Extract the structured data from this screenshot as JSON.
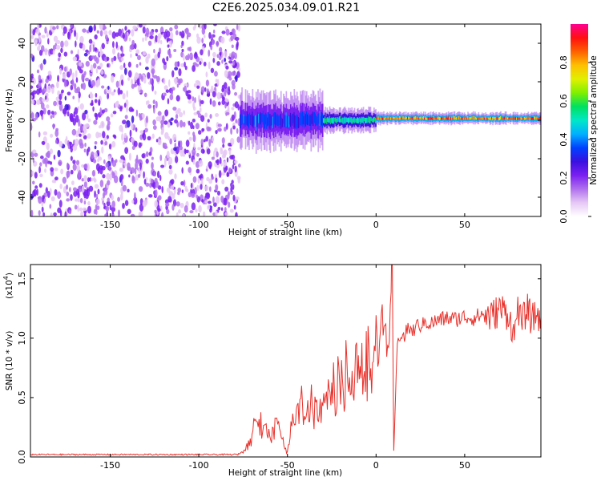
{
  "title": "C2E6.2025.034.09.01.R21",
  "chart_data": [
    {
      "type": "heatmap",
      "xlabel": "Height of straight line (km)",
      "ylabel": "Frequency (Hz)",
      "xlim": [
        -195,
        93
      ],
      "ylim": [
        -50,
        50
      ],
      "xticks": [
        -150,
        -100,
        -50,
        0,
        50
      ],
      "yticks": [
        -40,
        -20,
        0,
        20,
        40
      ],
      "colorbar": {
        "label": "Normalized spectral amplitude",
        "range": [
          0,
          1
        ],
        "ticks": [
          0.0,
          0.2,
          0.4,
          0.6,
          0.8
        ],
        "colors": [
          "#ffffff",
          "#e6c8f5",
          "#b070ee",
          "#7a20f0",
          "#3a10e0",
          "#0040ff",
          "#00b0ff",
          "#00e8c8",
          "#00e060",
          "#80f000",
          "#e0f000",
          "#ffc000",
          "#ff6000",
          "#ff1010",
          "#ff0090"
        ]
      },
      "regions": [
        {
          "label": "noise",
          "x": [
            -195,
            -77
          ],
          "freq_range": [
            -50,
            50
          ],
          "amplitude_approx": 0.15
        },
        {
          "label": "broadened carrier",
          "x": [
            -77,
            -30
          ],
          "freq_center": 0,
          "half_width_hz": 7,
          "amplitude_approx": 0.4
        },
        {
          "label": "narrowing carrier",
          "x": [
            -30,
            0
          ],
          "freq_center": 0,
          "half_width_hz": 3,
          "amplitude_approx": 0.6
        },
        {
          "label": "clean carrier",
          "x": [
            0,
            93
          ],
          "freq_center": 1,
          "half_width_hz": 1.5,
          "amplitude_approx": 0.95
        }
      ]
    },
    {
      "type": "line",
      "xlabel": "Height of straight line (km)",
      "ylabel": "SNR (10 * v/v)",
      "yscale_label": "(x10",
      "yscale_exponent": "4",
      "xlim": [
        -195,
        93
      ],
      "ylim": [
        0,
        1.62
      ],
      "xticks": [
        -150,
        -100,
        -50,
        0,
        50
      ],
      "yticks": [
        0.0,
        0.5,
        1.0,
        1.5
      ],
      "ytick_labels": [
        "0.0",
        "0.5",
        "1.0",
        "1.5"
      ],
      "color": "#e8302a",
      "series": [
        {
          "x": [
            -195,
            -180,
            -160,
            -140,
            -120,
            -100,
            -85,
            -78,
            -75,
            -72,
            -70,
            -68,
            -66,
            -64,
            -62,
            -60,
            -58,
            -56,
            -54,
            -52,
            -50,
            -48,
            -46,
            -44,
            -42,
            -40,
            -38,
            -36,
            -34,
            -32,
            -30,
            -28,
            -26,
            -24,
            -22,
            -20,
            -18,
            -16,
            -14,
            -12,
            -10,
            -8,
            -6,
            -4,
            -2,
            0,
            2,
            4,
            6,
            8,
            9,
            10,
            12,
            14,
            16,
            18,
            20,
            22,
            24,
            26,
            28,
            30,
            35,
            40,
            45,
            50,
            55,
            60,
            65,
            70,
            75,
            78,
            80,
            82,
            85,
            88,
            90,
            93
          ],
          "y": [
            0.02,
            0.02,
            0.02,
            0.02,
            0.02,
            0.02,
            0.02,
            0.02,
            0.05,
            0.12,
            0.25,
            0.35,
            0.42,
            0.3,
            0.35,
            0.2,
            0.28,
            0.4,
            0.25,
            0.1,
            0.05,
            0.3,
            0.35,
            0.45,
            0.6,
            0.38,
            0.5,
            0.65,
            0.55,
            0.7,
            0.5,
            0.75,
            0.65,
            0.85,
            0.7,
            0.9,
            0.75,
            0.95,
            0.8,
            1.0,
            0.85,
            0.95,
            0.9,
            1.05,
            0.95,
            1.0,
            0.95,
            1.1,
            1.0,
            1.05,
            1.62,
            0.05,
            0.95,
            1.05,
            1.0,
            1.1,
            1.05,
            1.08,
            1.12,
            1.1,
            1.15,
            1.12,
            1.15,
            1.17,
            1.16,
            1.18,
            1.17,
            1.2,
            1.18,
            1.25,
            1.2,
            1.0,
            1.3,
            1.1,
            1.25,
            1.15,
            1.2,
            1.18
          ]
        }
      ]
    }
  ]
}
